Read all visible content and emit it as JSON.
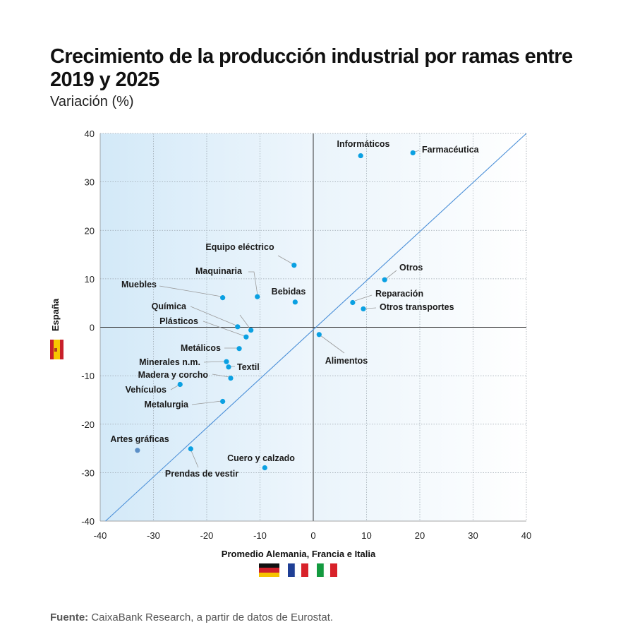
{
  "title": "Crecimiento de la producción industrial por ramas entre 2019 y 2025",
  "subtitle": "Variación (%)",
  "source_label": "Fuente:",
  "source_text": " CaixaBank Research, a partir de datos de Eurostat.",
  "chart_data": {
    "type": "scatter",
    "xlabel": "Promedio Alemania, Francia e Italia",
    "ylabel": "España",
    "xlim": [
      -40,
      40
    ],
    "ylim": [
      -40,
      40
    ],
    "xticks": [
      -40,
      -30,
      -20,
      -10,
      0,
      10,
      20,
      30,
      40
    ],
    "yticks": [
      -40,
      -30,
      -20,
      -10,
      0,
      10,
      20,
      30,
      40
    ],
    "grid": true,
    "reference_line": "y = x",
    "colors": {
      "point": "#0aa0e2",
      "point_highlight": "#5b8fc7",
      "diagonal": "#4a8fd8",
      "background_left": "#d3e9f8"
    },
    "flags_x": [
      "germany-flag",
      "france-flag",
      "italy-flag"
    ],
    "flags_y": [
      "spain-flag"
    ],
    "points": [
      {
        "label": "Informáticos",
        "x": 8.9,
        "y": 35.4
      },
      {
        "label": "Farmacéutica",
        "x": 18.7,
        "y": 36.0
      },
      {
        "label": "Equipo eléctrico",
        "x": -3.6,
        "y": 12.8
      },
      {
        "label": "Otros",
        "x": 13.4,
        "y": 9.8
      },
      {
        "label": "Maquinaria",
        "x": -10.5,
        "y": 6.3
      },
      {
        "label": "Muebles",
        "x": -17.0,
        "y": 6.1
      },
      {
        "label": "Bebidas",
        "x": -3.4,
        "y": 5.2
      },
      {
        "label": "Reparación",
        "x": 7.4,
        "y": 5.1
      },
      {
        "label": "Otros transportes",
        "x": 9.4,
        "y": 3.8
      },
      {
        "label": "Química",
        "x": -14.2,
        "y": 0.1
      },
      {
        "label": "",
        "x": -11.7,
        "y": -0.6
      },
      {
        "label": "Plásticos",
        "x": -12.6,
        "y": -2.0
      },
      {
        "label": "Alimentos",
        "x": 1.1,
        "y": -1.5
      },
      {
        "label": "Metálicos",
        "x": -13.9,
        "y": -4.4
      },
      {
        "label": "Minerales n.m.",
        "x": -16.3,
        "y": -7.1
      },
      {
        "label": "Textil",
        "x": -15.9,
        "y": -8.2
      },
      {
        "label": "Madera y corcho",
        "x": -15.5,
        "y": -10.5
      },
      {
        "label": "Vehículos",
        "x": -25.0,
        "y": -11.8
      },
      {
        "label": "Metalurgia",
        "x": -17.0,
        "y": -15.3
      },
      {
        "label": "Artes gráficas",
        "x": -33.0,
        "y": -25.4
      },
      {
        "label": "Prendas de vestir",
        "x": -23.0,
        "y": -25.1
      },
      {
        "label": "Cuero y calzado",
        "x": -9.1,
        "y": -29.0
      }
    ]
  }
}
